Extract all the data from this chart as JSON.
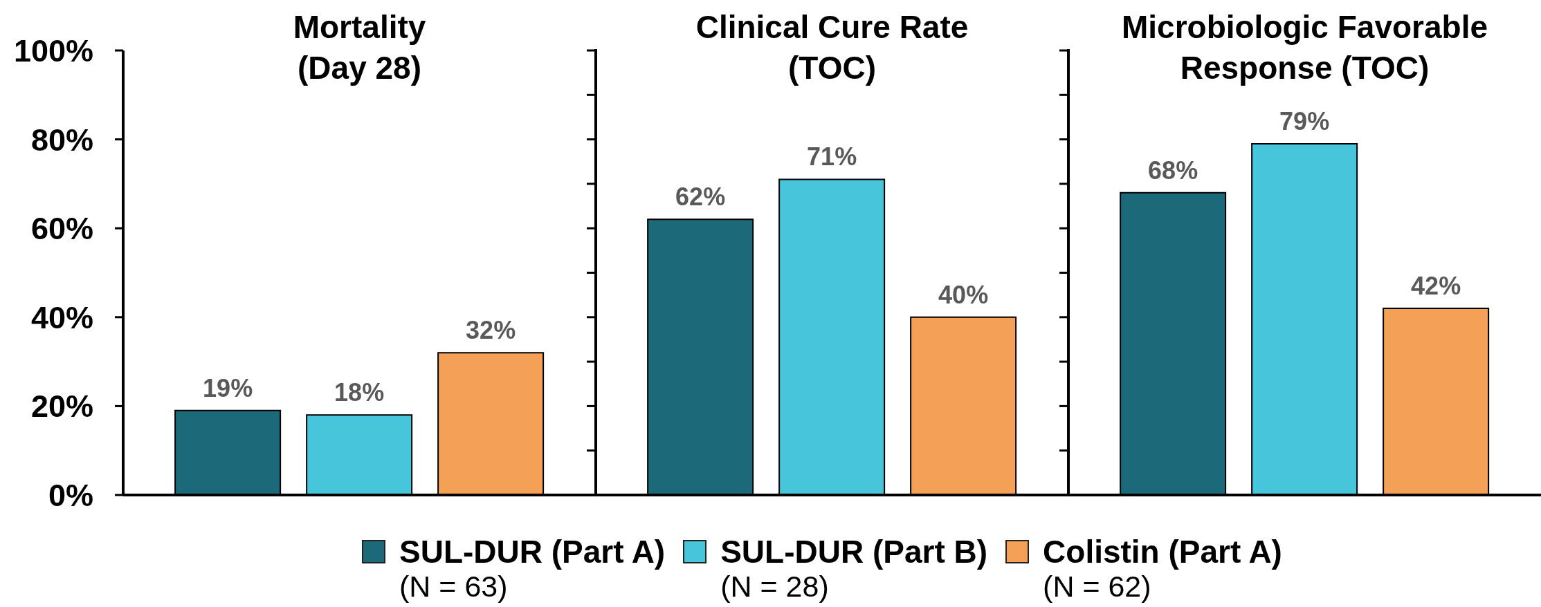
{
  "chart_data": {
    "type": "bar",
    "categories": [
      "Mortality\n(Day 28)",
      "Clinical Cure Rate\n(TOC)",
      "Microbiologic Favorable\nResponse (TOC)"
    ],
    "series": [
      {
        "name": "SUL-DUR (Part A)\n(N = 63)",
        "color": "#1b6979",
        "values": [
          19,
          62,
          68
        ],
        "value_labels": [
          "19%",
          "62%",
          "68%"
        ]
      },
      {
        "name": "SUL-DUR (Part B)\n(N = 28)",
        "color": "#46c5db",
        "values": [
          18,
          71,
          79
        ],
        "value_labels": [
          "18%",
          "71%",
          "79%"
        ]
      },
      {
        "name": "Colistin (Part A)\n(N = 62)",
        "color": "#f4a057",
        "values": [
          32,
          40,
          42
        ],
        "value_labels": [
          "32%",
          "40%",
          "42%"
        ]
      }
    ],
    "ylim": [
      0,
      100
    ],
    "yticks": [
      {
        "value": 0,
        "label": "0%"
      },
      {
        "value": 20,
        "label": "20%"
      },
      {
        "value": 40,
        "label": "40%"
      },
      {
        "value": 60,
        "label": "60%"
      },
      {
        "value": 80,
        "label": "80%"
      },
      {
        "value": 100,
        "label": "100%"
      }
    ],
    "legend": "bottom"
  }
}
